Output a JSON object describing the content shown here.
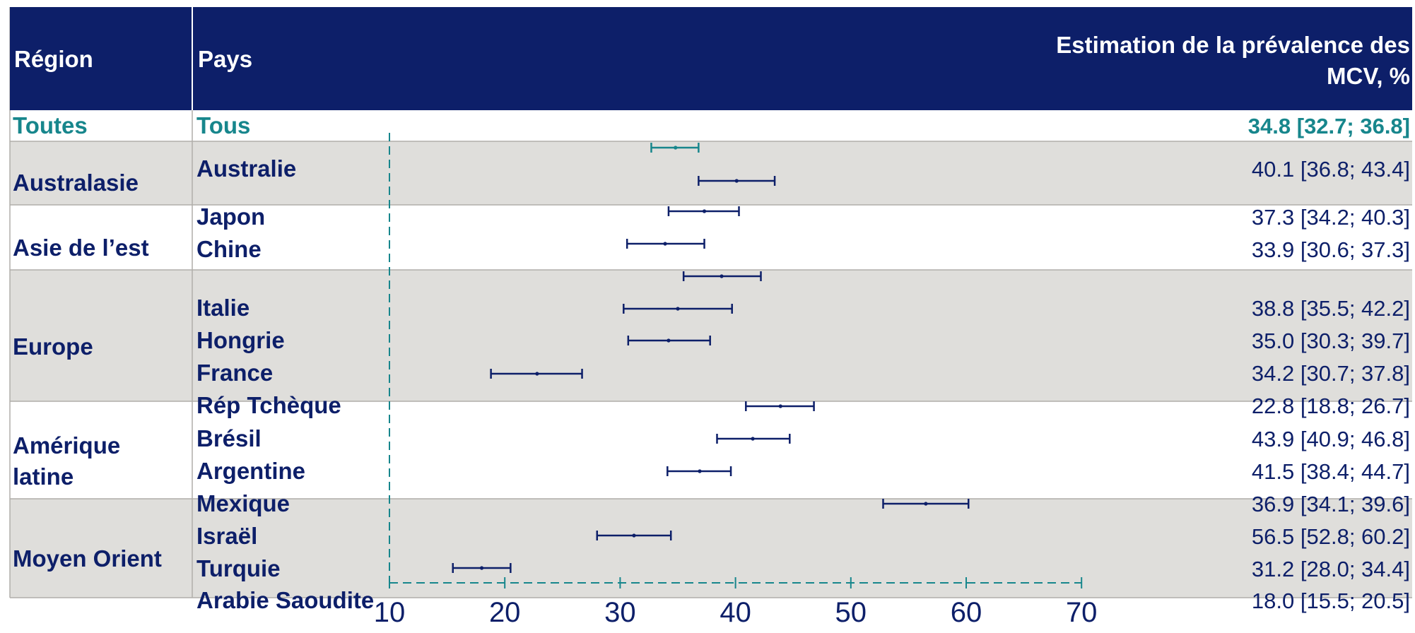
{
  "table": {
    "header": {
      "region": "Région",
      "country": "Pays",
      "estimate_line1": "Estimation de la prévalence des",
      "estimate_line2": "MCV, %"
    },
    "overall": {
      "region": "Toutes",
      "country": "Tous",
      "label": "34.8 [32.7; 36.8]"
    },
    "groups": [
      {
        "region": [
          "Australasie"
        ],
        "countries": [
          "Australie"
        ]
      },
      {
        "region": [
          "Asie de l’est"
        ],
        "countries": [
          "Japon",
          "Chine"
        ]
      },
      {
        "region": [
          "Europe"
        ],
        "countries": [
          "Italie",
          "Hongrie",
          "France",
          "Rép Tchèque"
        ]
      },
      {
        "region": [
          "Amérique",
          "latine"
        ],
        "countries": [
          "Brésil",
          "Argentine",
          "Mexique"
        ]
      },
      {
        "region": [
          "Moyen Orient"
        ],
        "countries": [
          "Israël",
          "Turquie",
          "Arabie Saoudite"
        ]
      }
    ]
  },
  "chart_data": {
    "type": "forest",
    "xlim": [
      10,
      70
    ],
    "x_ticks": [
      10,
      20,
      30,
      40,
      50,
      60,
      70
    ],
    "reference_line": 10,
    "overall": {
      "estimate": 34.8,
      "low": 32.7,
      "high": 36.8
    },
    "rows": [
      {
        "country": "Australie",
        "estimate": 40.1,
        "low": 36.8,
        "high": 43.4,
        "label": "40.1 [36.8; 43.4]"
      },
      {
        "country": "Japon",
        "estimate": 37.3,
        "low": 34.2,
        "high": 40.3,
        "label": "37.3 [34.2; 40.3]"
      },
      {
        "country": "Chine",
        "estimate": 33.9,
        "low": 30.6,
        "high": 37.3,
        "label": "33.9 [30.6; 37.3]"
      },
      {
        "country": "Italie",
        "estimate": 38.8,
        "low": 35.5,
        "high": 42.2,
        "label": "38.8 [35.5; 42.2]"
      },
      {
        "country": "Hongrie",
        "estimate": 35.0,
        "low": 30.3,
        "high": 39.7,
        "label": "35.0 [30.3; 39.7]"
      },
      {
        "country": "France",
        "estimate": 34.2,
        "low": 30.7,
        "high": 37.8,
        "label": "34.2 [30.7; 37.8]"
      },
      {
        "country": "Rép Tchèque",
        "estimate": 22.8,
        "low": 18.8,
        "high": 26.7,
        "label": "22.8 [18.8; 26.7]"
      },
      {
        "country": "Brésil",
        "estimate": 43.9,
        "low": 40.9,
        "high": 46.8,
        "label": "43.9 [40.9; 46.8]"
      },
      {
        "country": "Argentine",
        "estimate": 41.5,
        "low": 38.4,
        "high": 44.7,
        "label": "41.5 [38.4; 44.7]"
      },
      {
        "country": "Mexique",
        "estimate": 36.9,
        "low": 34.1,
        "high": 39.6,
        "label": "36.9 [34.1; 39.6]"
      },
      {
        "country": "Israël",
        "estimate": 56.5,
        "low": 52.8,
        "high": 60.2,
        "label": "56.5 [52.8; 60.2]"
      },
      {
        "country": "Turquie",
        "estimate": 31.2,
        "low": 28.0,
        "high": 34.4,
        "label": "31.2 [28.0; 34.4]"
      },
      {
        "country": "Arabie Saoudite",
        "estimate": 18.0,
        "low": 15.5,
        "high": 20.5,
        "label": "18.0 [15.5; 20.5]"
      }
    ]
  },
  "colors": {
    "header_bg": "#0d1f69",
    "text_navy": "#0d1f69",
    "accent_teal": "#17868c",
    "band_grey": "#dfdedb",
    "grid_line": "#b0aeaa"
  }
}
